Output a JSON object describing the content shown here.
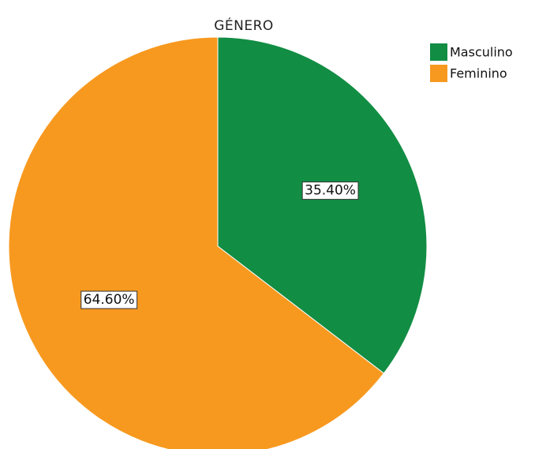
{
  "chart_data": {
    "type": "pie",
    "title": "GÉNERO",
    "categories": [
      "Masculino",
      "Feminino"
    ],
    "values": [
      35.4,
      64.6
    ],
    "value_labels": [
      "35.40%",
      "64.60%"
    ],
    "colors": [
      "#128d44",
      "#f7991f"
    ],
    "start_angle": "12 o'clock",
    "direction": "clockwise",
    "legend_placement": "top-right"
  }
}
